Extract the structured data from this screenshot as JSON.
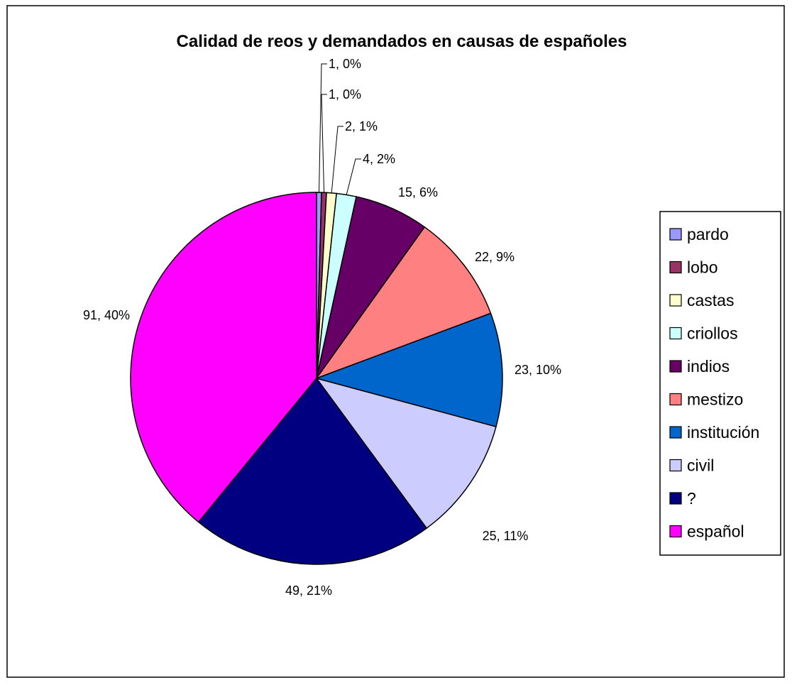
{
  "chart_data": {
    "type": "pie",
    "title": "Calidad de reos y demandados en causas de españoles",
    "legend_position": "right",
    "slices": [
      {
        "name": "pardo",
        "value": 1,
        "label": "1, 0%",
        "color": "#9999FF"
      },
      {
        "name": "lobo",
        "value": 1,
        "label": "1, 0%",
        "color": "#993366"
      },
      {
        "name": "castas",
        "value": 2,
        "label": "2, 1%",
        "color": "#FFFFCC"
      },
      {
        "name": "criollos",
        "value": 4,
        "label": "4, 2%",
        "color": "#CCFFFF"
      },
      {
        "name": "indios",
        "value": 15,
        "label": "15, 6%",
        "color": "#660066"
      },
      {
        "name": "mestizo",
        "value": 22,
        "label": "22, 9%",
        "color": "#FF8080"
      },
      {
        "name": "institución",
        "value": 23,
        "label": "23, 10%",
        "color": "#0066CC"
      },
      {
        "name": "civil",
        "value": 25,
        "label": "25, 11%",
        "color": "#CCCCFF"
      },
      {
        "name": "?",
        "value": 49,
        "label": "49, 21%",
        "color": "#000080"
      },
      {
        "name": "español",
        "value": 91,
        "label": "91, 40%",
        "color": "#FF00FF"
      }
    ]
  }
}
